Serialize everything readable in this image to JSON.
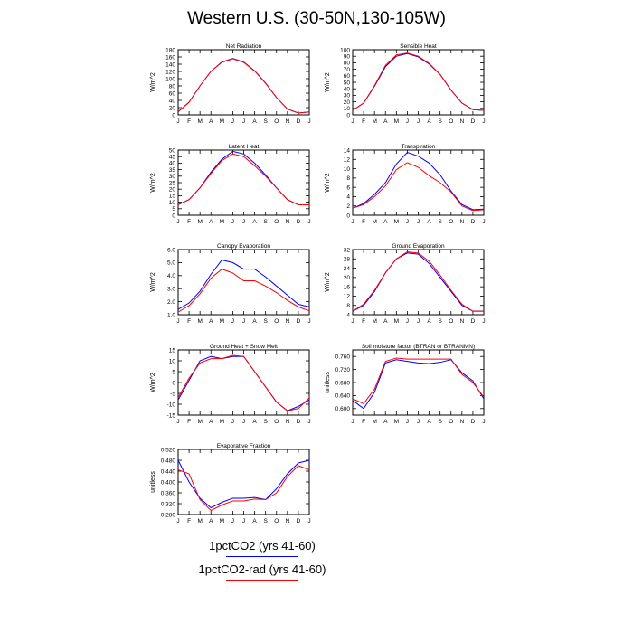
{
  "title": "Western U.S. (30-50N,130-105W)",
  "legend": [
    {
      "label": "1pctCO2 (yrs 41-60)",
      "color": "#0000ff"
    },
    {
      "label": "1pctCO2-rad (yrs 41-60)",
      "color": "#ff0000"
    }
  ],
  "months": [
    "J",
    "F",
    "M",
    "A",
    "M",
    "J",
    "J",
    "A",
    "S",
    "O",
    "N",
    "D",
    "J"
  ],
  "chart_data": [
    {
      "type": "line",
      "title": "Net Radiation",
      "ylabel": "W/m^2",
      "ylim": [
        0,
        180
      ],
      "yticks": [
        0,
        20,
        40,
        60,
        80,
        100,
        120,
        140,
        160,
        180
      ],
      "series": [
        {
          "name": "1pctCO2 (yrs 41-60)",
          "color": "#0000ff",
          "values": [
            8,
            35,
            80,
            120,
            146,
            156,
            146,
            122,
            88,
            48,
            16,
            5,
            8
          ]
        },
        {
          "name": "1pctCO2-rad (yrs 41-60)",
          "color": "#ff0000",
          "values": [
            8,
            35,
            80,
            120,
            145,
            155,
            145,
            121,
            87,
            48,
            16,
            5,
            8
          ]
        }
      ]
    },
    {
      "type": "line",
      "title": "Sensible Heat",
      "ylabel": "W/m^2",
      "ylim": [
        0,
        100
      ],
      "yticks": [
        0,
        10,
        20,
        30,
        40,
        50,
        60,
        70,
        80,
        90,
        100
      ],
      "series": [
        {
          "name": "1pctCO2 (yrs 41-60)",
          "color": "#0000ff",
          "values": [
            7,
            18,
            44,
            74,
            90,
            94,
            89,
            78,
            62,
            38,
            18,
            8,
            7
          ]
        },
        {
          "name": "1pctCO2-rad (yrs 41-60)",
          "color": "#ff0000",
          "values": [
            7,
            18,
            45,
            76,
            92,
            95,
            90,
            79,
            62,
            38,
            18,
            8,
            7
          ]
        }
      ]
    },
    {
      "type": "line",
      "title": "Latent Heat",
      "ylabel": "W/m^2",
      "ylim": [
        0,
        50
      ],
      "yticks": [
        0,
        5,
        10,
        15,
        20,
        25,
        30,
        35,
        40,
        45,
        50
      ],
      "series": [
        {
          "name": "1pctCO2 (yrs 41-60)",
          "color": "#0000ff",
          "values": [
            8,
            12,
            21,
            33,
            43,
            49,
            47,
            40,
            31,
            21,
            12,
            8,
            8
          ]
        },
        {
          "name": "1pctCO2-rad (yrs 41-60)",
          "color": "#ff0000",
          "values": [
            8,
            12,
            21,
            32,
            42,
            47,
            45,
            38,
            30,
            21,
            12,
            8,
            8
          ]
        }
      ]
    },
    {
      "type": "line",
      "title": "Transpiration",
      "ylabel": "W/m^2",
      "ylim": [
        0,
        14
      ],
      "yticks": [
        0,
        2,
        4,
        6,
        8,
        10,
        12,
        14
      ],
      "series": [
        {
          "name": "1pctCO2 (yrs 41-60)",
          "color": "#0000ff",
          "values": [
            1.5,
            2.5,
            4.5,
            7,
            11,
            13.5,
            12.7,
            11.2,
            8.7,
            5.2,
            2.3,
            1.2,
            1.3
          ]
        },
        {
          "name": "1pctCO2-rad (yrs 41-60)",
          "color": "#ff0000",
          "values": [
            1.5,
            2.3,
            4,
            6.3,
            9.8,
            11.3,
            10.3,
            8.5,
            7,
            5,
            2,
            1,
            1.2
          ]
        }
      ]
    },
    {
      "type": "line",
      "title": "Canopy Evaporation",
      "ylabel": "W/m^2",
      "ylim": [
        1,
        6
      ],
      "yticks": [
        1.0,
        2.0,
        3.0,
        4.0,
        5.0,
        6.0
      ],
      "tickDecimals": 1,
      "series": [
        {
          "name": "1pctCO2 (yrs 41-60)",
          "color": "#0000ff",
          "values": [
            1.4,
            1.9,
            2.8,
            4.1,
            5.2,
            5.0,
            4.5,
            4.5,
            3.9,
            3.2,
            2.5,
            1.8,
            1.6
          ]
        },
        {
          "name": "1pctCO2-rad (yrs 41-60)",
          "color": "#ff0000",
          "values": [
            1.2,
            1.7,
            2.6,
            3.8,
            4.5,
            4.2,
            3.6,
            3.6,
            3.2,
            2.7,
            2.1,
            1.6,
            1.3
          ]
        }
      ]
    },
    {
      "type": "line",
      "title": "Ground Evaporation",
      "ylabel": "W/m^2",
      "ylim": [
        4,
        32
      ],
      "yticks": [
        4,
        8,
        12,
        16,
        20,
        24,
        28,
        32
      ],
      "series": [
        {
          "name": "1pctCO2 (yrs 41-60)",
          "color": "#0000ff",
          "values": [
            5.5,
            8,
            14,
            22,
            28,
            30.5,
            30,
            26,
            20,
            14,
            8,
            5.5,
            5.5
          ]
        },
        {
          "name": "1pctCO2-rad (yrs 41-60)",
          "color": "#ff0000",
          "values": [
            5.5,
            8.5,
            14.5,
            22,
            28,
            31,
            30.5,
            27,
            21,
            14.5,
            8.5,
            5.5,
            5.5
          ]
        }
      ]
    },
    {
      "type": "line",
      "title": "Ground Heat + Snow Melt",
      "ylabel": "W/m^2",
      "ylim": [
        -15,
        15
      ],
      "yticks": [
        -15,
        -10,
        -5,
        0,
        5,
        10,
        15
      ],
      "series": [
        {
          "name": "1pctCO2 (yrs 41-60)",
          "color": "#0000ff",
          "values": [
            -8,
            1,
            10,
            12,
            11,
            12,
            12,
            5,
            -2,
            -9,
            -13,
            -11,
            -8
          ]
        },
        {
          "name": "1pctCO2-rad (yrs 41-60)",
          "color": "#ff0000",
          "values": [
            -7,
            2,
            9,
            11,
            11,
            12.5,
            12,
            5,
            -2,
            -9,
            -13,
            -12,
            -7
          ]
        }
      ]
    },
    {
      "type": "line",
      "title": "Soil moisture factor (BTRAN or BTRANMN)",
      "ylabel": "unitless",
      "ylim": [
        0.58,
        0.78
      ],
      "yticks": [
        0.6,
        0.64,
        0.68,
        0.72,
        0.76
      ],
      "tickDecimals": 3,
      "series": [
        {
          "name": "1pctCO2 (yrs 41-60)",
          "color": "#0000ff",
          "values": [
            0.625,
            0.6,
            0.65,
            0.74,
            0.75,
            0.745,
            0.74,
            0.738,
            0.742,
            0.75,
            0.71,
            0.685,
            0.63
          ]
        },
        {
          "name": "1pctCO2-rad (yrs 41-60)",
          "color": "#ff0000",
          "values": [
            0.63,
            0.615,
            0.66,
            0.745,
            0.755,
            0.752,
            0.752,
            0.752,
            0.752,
            0.752,
            0.705,
            0.68,
            0.635
          ]
        }
      ]
    },
    {
      "type": "line",
      "title": "Evaporative Fraction",
      "ylabel": "unitless",
      "ylim": [
        0.28,
        0.52
      ],
      "yticks": [
        0.28,
        0.32,
        0.36,
        0.4,
        0.44,
        0.48,
        0.52
      ],
      "tickDecimals": 3,
      "series": [
        {
          "name": "1pctCO2 (yrs 41-60)",
          "color": "#0000ff",
          "values": [
            0.48,
            0.4,
            0.34,
            0.305,
            0.325,
            0.34,
            0.34,
            0.343,
            0.335,
            0.375,
            0.43,
            0.47,
            0.48
          ]
        },
        {
          "name": "1pctCO2-rad (yrs 41-60)",
          "color": "#ff0000",
          "values": [
            0.445,
            0.43,
            0.335,
            0.295,
            0.315,
            0.33,
            0.33,
            0.337,
            0.335,
            0.36,
            0.42,
            0.46,
            0.445
          ]
        }
      ]
    }
  ]
}
